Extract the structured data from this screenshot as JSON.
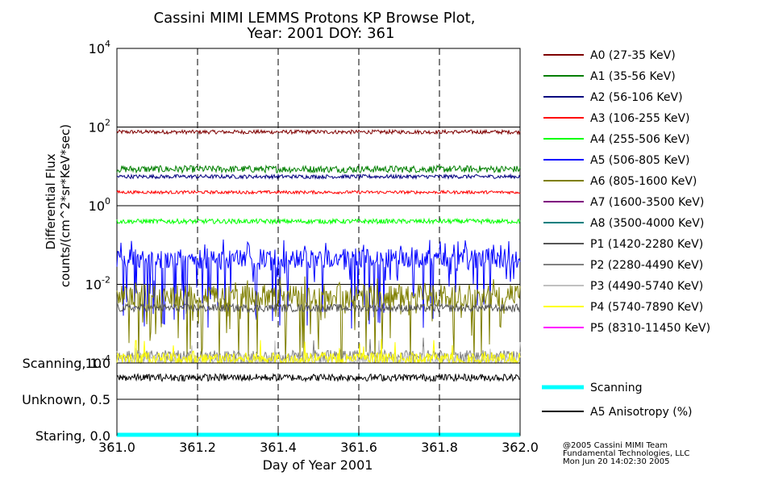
{
  "chart_data": {
    "type": "line",
    "title": "Cassini MIMI LEMMS Protons KP Browse Plot,",
    "subtitle": "Year: 2001 DOY: 361",
    "xlabel": "Day of Year 2001",
    "ylabel": [
      "Differential Flux",
      "counts/(cm^2*sr*KeV*sec)"
    ],
    "y_scale": "log",
    "xlim": [
      361.0,
      362.0
    ],
    "ylim": [
      0.0001,
      10000
    ],
    "x_ticks": [
      "361.0",
      "361.2",
      "361.4",
      "361.6",
      "361.8",
      "362.0"
    ],
    "x_tick_values": [
      361.0,
      361.2,
      361.4,
      361.6,
      361.8,
      362.0
    ],
    "y_ticks": [
      {
        "base": "10",
        "exp": "4",
        "value": 10000
      },
      {
        "base": "10",
        "exp": "2",
        "value": 100
      },
      {
        "base": "10",
        "exp": "0",
        "value": 1
      },
      {
        "base": "10",
        "exp": "-2",
        "value": 0.01
      },
      {
        "base": "10",
        "exp": "-4",
        "value": 0.0001
      }
    ],
    "grid": true,
    "legend_position": "right",
    "series": [
      {
        "name": "A0 (27-35 KeV)",
        "color": "#7f0000",
        "level": 75,
        "noise": 0.05,
        "spikes": 0
      },
      {
        "name": "A1 (35-56 KeV)",
        "color": "#007f00",
        "level": 8.5,
        "noise": 0.09,
        "spikes": 0
      },
      {
        "name": "A2 (56-106 KeV)",
        "color": "#00007f",
        "level": 5.5,
        "noise": 0.05,
        "spikes": 0
      },
      {
        "name": "A3 (106-255 KeV)",
        "color": "#ff0000",
        "level": 2.2,
        "noise": 0.04,
        "spikes": 0
      },
      {
        "name": "A4 (255-506 KeV)",
        "color": "#00ff00",
        "level": 0.4,
        "noise": 0.06,
        "spikes": 0
      },
      {
        "name": "A5 (506-805 KeV)",
        "color": "#0000ff",
        "level": 0.045,
        "noise": 0.25,
        "spikes": 0.18
      },
      {
        "name": "A6 (805-1600 KeV)",
        "color": "#7f7f00",
        "level": 0.005,
        "noise": 0.3,
        "spikes": 0.12
      },
      {
        "name": "A7 (1600-3500 KeV)",
        "color": "#7f007f",
        "level": null,
        "noise": 0,
        "spikes": 0
      },
      {
        "name": "A8 (3500-4000 KeV)",
        "color": "#007f7f",
        "level": null,
        "noise": 0,
        "spikes": 0
      },
      {
        "name": "P1 (1420-2280 KeV)",
        "color": "#555555",
        "level": 0.0025,
        "noise": 0.1,
        "spikes": 0
      },
      {
        "name": "P2 (2280-4490 KeV)",
        "color": "#808080",
        "level": 0.00015,
        "noise": 0.15,
        "spikes": 0.05
      },
      {
        "name": "P3 (4490-5740 KeV)",
        "color": "#c0c0c0",
        "level": 0.00012,
        "noise": 0.15,
        "spikes": 0.04
      },
      {
        "name": "P4 (5740-7890 KeV)",
        "color": "#ffff00",
        "level": 0.00013,
        "noise": 0.15,
        "spikes": 0.06
      },
      {
        "name": "P5 (8310-11450 KeV)",
        "color": "#ff00ff",
        "level": null,
        "noise": 0,
        "spikes": 0
      }
    ],
    "lower_panel": {
      "y_ticks": [
        {
          "label": "Scanning, 1.0",
          "value": 1.0
        },
        {
          "label": "Unknown, 0.5",
          "value": 0.5
        },
        {
          "label": "Staring, 0.0",
          "value": 0.0
        }
      ],
      "ylim": [
        0,
        1
      ],
      "series": [
        {
          "name": "Scanning",
          "color": "#00ffff",
          "value": 0.0
        },
        {
          "name": "A5 Anisotropy (%)",
          "color": "#000000",
          "level": 0.8,
          "noise": 0.05
        }
      ]
    },
    "credits": [
      "@2005 Cassini MIMI Team",
      "Fundamental Technologies, LLC",
      "Mon Jun 20 14:02:30 2005"
    ]
  }
}
